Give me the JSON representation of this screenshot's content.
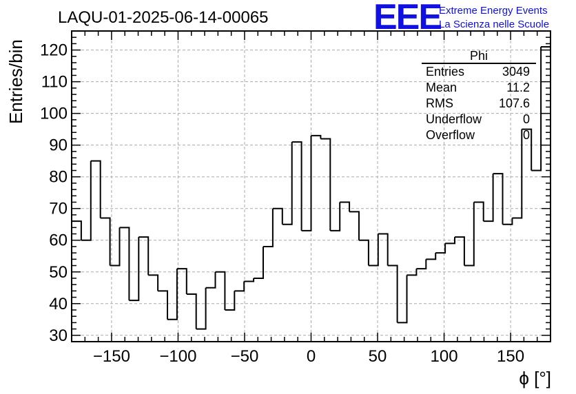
{
  "chart_data": {
    "type": "bar",
    "title": "LAQU-01-2025-06-14-00065",
    "xlabel": "ϕ [°]",
    "ylabel": "Entries/bin",
    "xlim": [
      -180,
      180
    ],
    "ylim": [
      28,
      126
    ],
    "bin_width": 7.2,
    "grid": true,
    "x_ticks": [
      -150,
      -100,
      -50,
      0,
      50,
      100,
      150
    ],
    "x_tick_labels": [
      "−150",
      "−100",
      "−50",
      "0",
      "50",
      "100",
      "150"
    ],
    "y_ticks": [
      30,
      40,
      50,
      60,
      70,
      80,
      90,
      100,
      110,
      120
    ],
    "y_tick_labels": [
      "30",
      "40",
      "50",
      "60",
      "70",
      "80",
      "90",
      "100",
      "110",
      "120"
    ],
    "values": [
      66,
      60,
      85,
      67,
      52,
      64,
      41,
      61,
      49,
      44,
      35,
      51,
      43,
      32,
      45,
      50,
      38,
      44,
      47,
      48,
      58,
      70,
      65,
      91,
      63,
      93,
      92,
      63,
      72,
      69,
      60,
      52,
      62,
      52,
      34,
      49,
      51,
      54,
      56,
      59,
      61,
      52,
      72,
      66,
      81,
      65,
      67,
      95,
      82,
      121
    ]
  },
  "stats": {
    "name": "Phi",
    "rows": [
      {
        "label": "Entries",
        "value": "3049"
      },
      {
        "label": "Mean",
        "value": "11.2"
      },
      {
        "label": "RMS",
        "value": "107.6"
      },
      {
        "label": "Underflow",
        "value": "0"
      },
      {
        "label": "Overflow",
        "value": "0"
      }
    ]
  },
  "branding": {
    "logo": "EEE",
    "line1": "Extreme Energy Events",
    "line2": "La Scienza nelle Scuole"
  },
  "colors": {
    "brand": "#1010e0",
    "grid": "#aaaaaa",
    "line": "#000000"
  }
}
